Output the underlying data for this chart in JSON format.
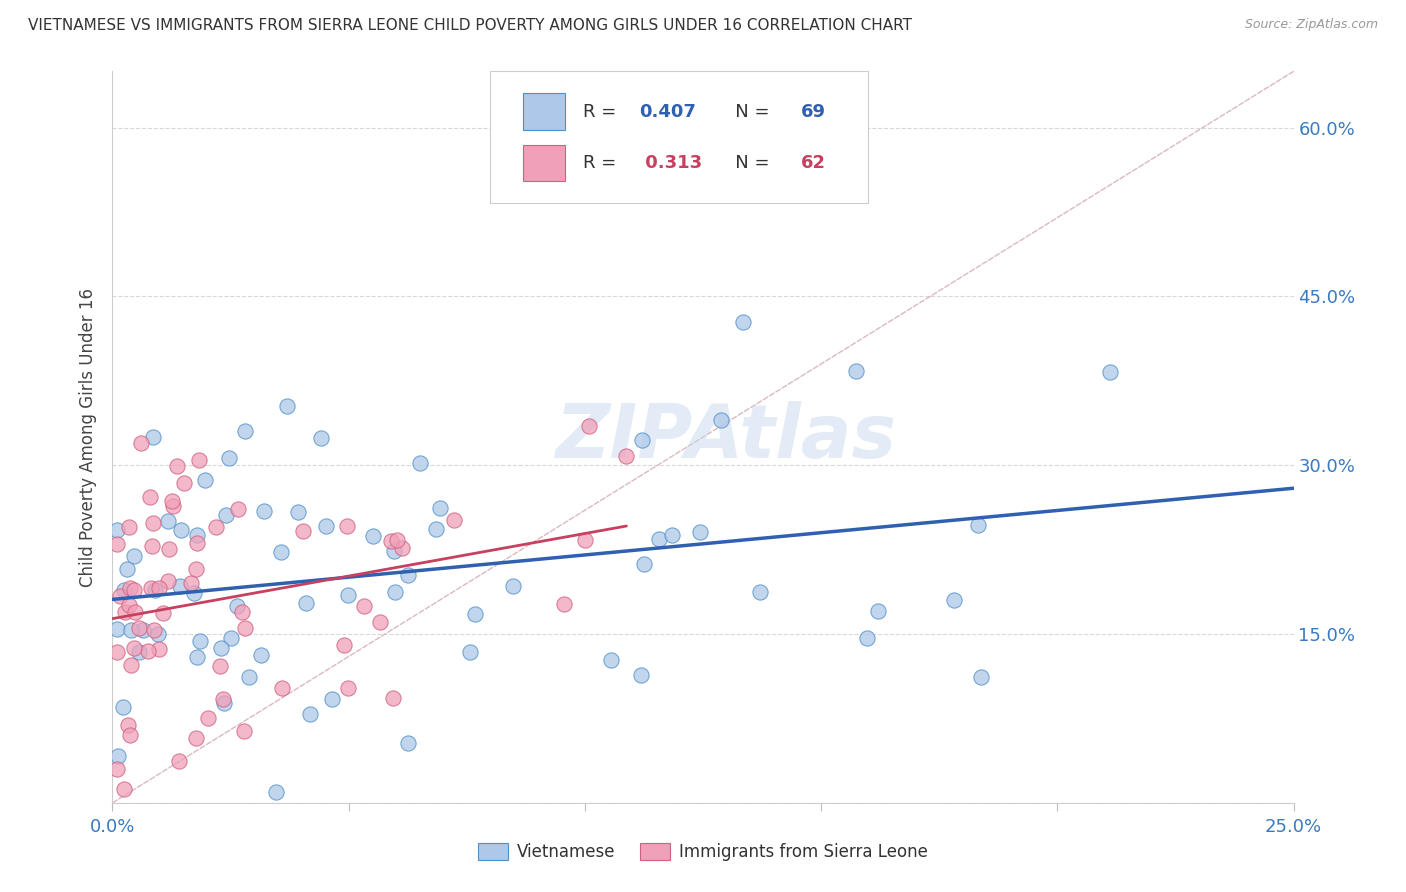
{
  "title": "VIETNAMESE VS IMMIGRANTS FROM SIERRA LEONE CHILD POVERTY AMONG GIRLS UNDER 16 CORRELATION CHART",
  "source": "Source: ZipAtlas.com",
  "ylabel": "Child Poverty Among Girls Under 16",
  "watermark": "ZIPAtlas",
  "xlim": [
    0.0,
    0.25
  ],
  "ylim": [
    0.0,
    0.65
  ],
  "xtick_positions": [
    0.0,
    0.05,
    0.1,
    0.15,
    0.2,
    0.25
  ],
  "xtick_labels": [
    "0.0%",
    "",
    "",
    "",
    "",
    "25.0%"
  ],
  "ytick_positions": [
    0.0,
    0.15,
    0.3,
    0.45,
    0.6
  ],
  "ytick_labels_right": [
    "",
    "15.0%",
    "30.0%",
    "45.0%",
    "60.0%"
  ],
  "legend_labels": [
    "Vietnamese",
    "Immigrants from Sierra Leone"
  ],
  "R_viet": 0.407,
  "N_viet": 69,
  "R_sierra": 0.313,
  "N_sierra": 62,
  "color_viet_fill": "#adc8e8",
  "color_viet_edge": "#5090c8",
  "color_sierra_fill": "#f0a0b8",
  "color_sierra_edge": "#d06080",
  "color_viet_line": "#3060b0",
  "color_sierra_line": "#c84060",
  "color_diag_line": "#d8b0b8",
  "background_color": "#ffffff",
  "tick_color": "#3a7abf",
  "grid_color": "#d8d8d8"
}
